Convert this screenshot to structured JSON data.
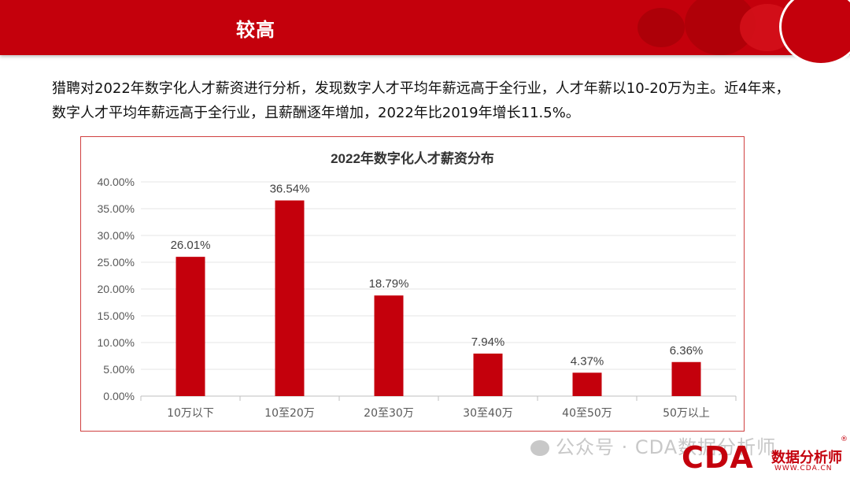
{
  "header": {
    "title": "较高"
  },
  "intro": {
    "text": "猎聘对2022年数字化人才薪资进行分析，发现数字人才平均年薪远高于全行业，人才年薪以10-20万为主。近4年来，数字人才平均年薪远高于全行业，且薪酬逐年增加，2022年比2019年增长11.5%。"
  },
  "chart_data": {
    "type": "bar",
    "title": "2022年数字化人才薪资分布",
    "categories": [
      "10万以下",
      "10至20万",
      "20至30万",
      "30至40万",
      "40至50万",
      "50万以上"
    ],
    "values": [
      26.01,
      36.54,
      18.79,
      7.94,
      4.37,
      6.36
    ],
    "value_labels": [
      "26.01%",
      "36.54%",
      "18.79%",
      "7.94%",
      "4.37%",
      "6.36%"
    ],
    "ylim": [
      0,
      40
    ],
    "yticks": [
      "0.00%",
      "5.00%",
      "10.00%",
      "15.00%",
      "20.00%",
      "25.00%",
      "30.00%",
      "35.00%",
      "40.00%"
    ],
    "xlabel": "",
    "ylabel": "",
    "grid": true,
    "bar_color": "#c4000c"
  },
  "watermark": {
    "text": "公众号 · CDA数据分析师"
  },
  "logo": {
    "mark": "CDA",
    "name": "数据分析师",
    "url": "WWW.CDA.CN",
    "reg": "®"
  },
  "colors": {
    "brand": "#c4000c",
    "text": "#111111"
  }
}
